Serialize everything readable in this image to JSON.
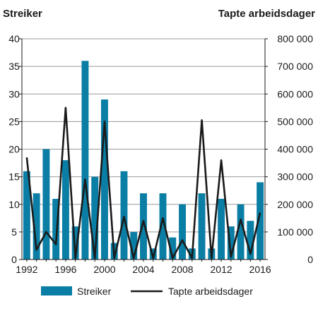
{
  "chart_data": {
    "type": "bar+line",
    "title": "",
    "left_axis_title": "Streiker",
    "right_axis_title": "Tapte arbeidsdager",
    "years": [
      1992,
      1993,
      1994,
      1995,
      1996,
      1997,
      1998,
      1999,
      2000,
      2001,
      2002,
      2003,
      2004,
      2005,
      2006,
      2007,
      2008,
      2009,
      2010,
      2011,
      2012,
      2013,
      2014,
      2015,
      2016
    ],
    "x_tick_labels": [
      "1992",
      "1996",
      "2000",
      "2004",
      "2008",
      "2012",
      "2016"
    ],
    "y_left_ticks": [
      "0",
      "5",
      "10",
      "15",
      "20",
      "25",
      "30",
      "35",
      "40"
    ],
    "y_right_ticks": [
      "0",
      "100 000",
      "200 000",
      "300 000",
      "400 000",
      "500 000",
      "600 000",
      "700 000",
      "800 000"
    ],
    "ylim_left": [
      0,
      40
    ],
    "ylim_right": [
      0,
      800000
    ],
    "grid": true,
    "legend_position": "bottom",
    "series": [
      {
        "name": "Streiker",
        "type": "bar",
        "axis": "left",
        "color": "#0a7ea4",
        "values": [
          16,
          12,
          20,
          11,
          18,
          6,
          36,
          15,
          29,
          3,
          16,
          5,
          12,
          2,
          12,
          4,
          10,
          2,
          12,
          2,
          11,
          6,
          10,
          7,
          14
        ]
      },
      {
        "name": "Tapte arbeidsdager",
        "type": "line",
        "axis": "right",
        "color": "#1a1a1a",
        "values": [
          370000,
          35000,
          100000,
          55000,
          550000,
          5000,
          290000,
          5000,
          500000,
          5000,
          155000,
          5000,
          140000,
          5000,
          150000,
          5000,
          70000,
          5000,
          505000,
          5000,
          360000,
          10000,
          145000,
          20000,
          170000
        ]
      }
    ]
  }
}
